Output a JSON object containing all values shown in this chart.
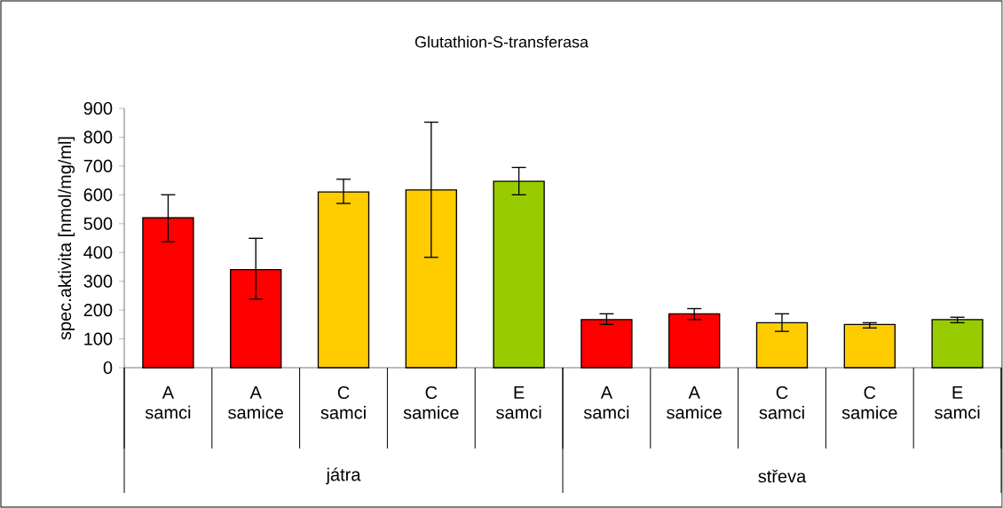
{
  "chart_data": {
    "type": "bar",
    "title": "Glutathion-S-transferasa",
    "ylabel": "spec.aktivita [nmol/mg/ml]",
    "categories": [
      "A samci",
      "A samice",
      "C samci",
      "C samice",
      "E samci",
      "A samci",
      "A samice",
      "C samci",
      "C samice",
      "E samci"
    ],
    "values": [
      520,
      340,
      610,
      617,
      647,
      167,
      187,
      156,
      150,
      167
    ],
    "colors": [
      "#ff0000",
      "#ff0000",
      "#ffcc00",
      "#ffcc00",
      "#99cc00",
      "#ff0000",
      "#ff0000",
      "#ffcc00",
      "#ffcc00",
      "#99cc00"
    ],
    "errors": [
      [
        437,
        600
      ],
      [
        238,
        449
      ],
      [
        570,
        654
      ],
      [
        383,
        852
      ],
      [
        600,
        695
      ],
      [
        150,
        187
      ],
      [
        167,
        205
      ],
      [
        126,
        187
      ],
      [
        138,
        156
      ],
      [
        156,
        175
      ]
    ],
    "ylim": [
      0,
      900
    ],
    "yticks": [
      0,
      100,
      200,
      300,
      400,
      500,
      600,
      700,
      800,
      900
    ],
    "annotations": [
      "játra",
      "střeva"
    ]
  }
}
